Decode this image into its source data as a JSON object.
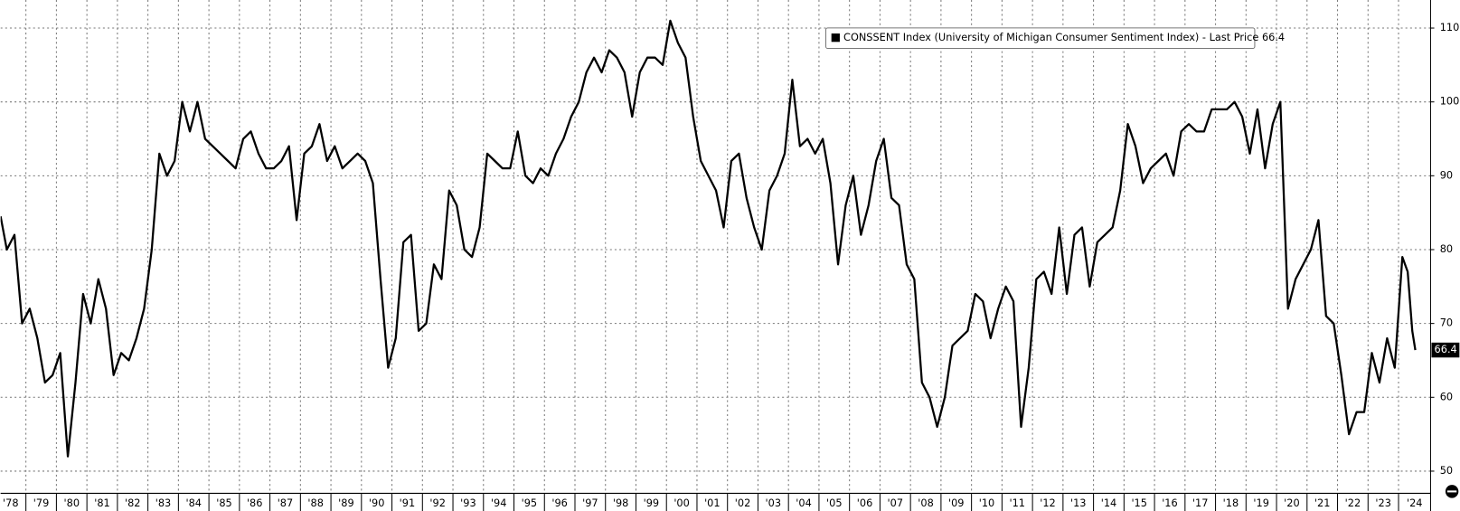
{
  "chart_data": {
    "type": "line",
    "series": [
      {
        "name": "CONSSENT Index (University of Michigan Consumer Sentiment Index) - Last Price 66.4",
        "color": "#000000",
        "x": [
          1978.17,
          1978.375,
          1978.625,
          1978.875,
          1979.125,
          1979.375,
          1979.625,
          1979.875,
          1980.125,
          1980.375,
          1980.625,
          1980.875,
          1981.125,
          1981.375,
          1981.625,
          1981.875,
          1982.125,
          1982.375,
          1982.625,
          1982.875,
          1983.125,
          1983.375,
          1983.625,
          1983.875,
          1984.125,
          1984.375,
          1984.625,
          1984.875,
          1985.125,
          1985.375,
          1985.625,
          1985.875,
          1986.125,
          1986.375,
          1986.625,
          1986.875,
          1987.125,
          1987.375,
          1987.625,
          1987.875,
          1988.125,
          1988.375,
          1988.625,
          1988.875,
          1989.125,
          1989.375,
          1989.625,
          1989.875,
          1990.125,
          1990.375,
          1990.625,
          1990.875,
          1991.125,
          1991.375,
          1991.625,
          1991.875,
          1992.125,
          1992.375,
          1992.625,
          1992.875,
          1993.125,
          1993.375,
          1993.625,
          1993.875,
          1994.125,
          1994.375,
          1994.625,
          1994.875,
          1995.125,
          1995.375,
          1995.625,
          1995.875,
          1996.125,
          1996.375,
          1996.625,
          1996.875,
          1997.125,
          1997.375,
          1997.625,
          1997.875,
          1998.125,
          1998.375,
          1998.625,
          1998.875,
          1999.125,
          1999.375,
          1999.625,
          1999.875,
          2000.125,
          2000.375,
          2000.625,
          2000.875,
          2001.125,
          2001.375,
          2001.625,
          2001.875,
          2002.125,
          2002.375,
          2002.625,
          2002.875,
          2003.125,
          2003.375,
          2003.625,
          2003.875,
          2004.125,
          2004.375,
          2004.625,
          2004.875,
          2005.125,
          2005.375,
          2005.625,
          2005.875,
          2006.125,
          2006.375,
          2006.625,
          2006.875,
          2007.125,
          2007.375,
          2007.625,
          2007.875,
          2008.125,
          2008.375,
          2008.625,
          2008.875,
          2009.125,
          2009.375,
          2009.625,
          2009.875,
          2010.125,
          2010.375,
          2010.625,
          2010.875,
          2011.125,
          2011.375,
          2011.625,
          2011.875,
          2012.125,
          2012.375,
          2012.625,
          2012.875,
          2013.125,
          2013.375,
          2013.625,
          2013.875,
          2014.125,
          2014.375,
          2014.625,
          2014.875,
          2015.125,
          2015.375,
          2015.625,
          2015.875,
          2016.125,
          2016.375,
          2016.625,
          2016.875,
          2017.125,
          2017.375,
          2017.625,
          2017.875,
          2018.125,
          2018.375,
          2018.625,
          2018.875,
          2019.125,
          2019.375,
          2019.625,
          2019.875,
          2020.125,
          2020.375,
          2020.625,
          2020.875,
          2021.125,
          2021.375,
          2021.625,
          2021.875,
          2022.125,
          2022.375,
          2022.625,
          2022.875,
          2023.125,
          2023.375,
          2023.625,
          2023.875,
          2024.125,
          2024.3,
          2024.45,
          2024.55
        ],
        "values": [
          84.5,
          80,
          82,
          70,
          72,
          68,
          62,
          63,
          66,
          52,
          62,
          74,
          70,
          76,
          72,
          63,
          66,
          65,
          68,
          72,
          80,
          93,
          90,
          92,
          100,
          96,
          100,
          95,
          94,
          93,
          92,
          91,
          95,
          96,
          93,
          91,
          91,
          92,
          94,
          84,
          93,
          94,
          97,
          92,
          94,
          91,
          92,
          93,
          92,
          89,
          76,
          64,
          68,
          81,
          82,
          69,
          70,
          78,
          76,
          88,
          86,
          80,
          79,
          83,
          93,
          92,
          91,
          91,
          96,
          90,
          89,
          91,
          90,
          93,
          95,
          98,
          100,
          104,
          106,
          104,
          107,
          106,
          104,
          98,
          104,
          106,
          106,
          105,
          111,
          108,
          106,
          98,
          92,
          90,
          88,
          83,
          92,
          93,
          87,
          83,
          80,
          88,
          90,
          93,
          103,
          94,
          95,
          93,
          95,
          89,
          78,
          86,
          90,
          82,
          86,
          92,
          95,
          87,
          86,
          78,
          76,
          62,
          60,
          56,
          60,
          67,
          68,
          69,
          74,
          73,
          68,
          72,
          75,
          73,
          56,
          64,
          76,
          77,
          74,
          83,
          74,
          82,
          83,
          75,
          81,
          82,
          83,
          88,
          97,
          94,
          89,
          91,
          92,
          93,
          90,
          96,
          97,
          96,
          96,
          99,
          99,
          99,
          100,
          98,
          93,
          99,
          91,
          97,
          100,
          72,
          76,
          78,
          80,
          84,
          71,
          70,
          63,
          55,
          58,
          58,
          66,
          62,
          68,
          64,
          79,
          77,
          69,
          66.4
        ]
      }
    ],
    "xlim": [
      1978.17,
      2025.05
    ],
    "xticks": [
      {
        "value": 1978,
        "label": "'78"
      },
      {
        "value": 1979,
        "label": "'79"
      },
      {
        "value": 1980,
        "label": "'80"
      },
      {
        "value": 1981,
        "label": "'81"
      },
      {
        "value": 1982,
        "label": "'82"
      },
      {
        "value": 1983,
        "label": "'83"
      },
      {
        "value": 1984,
        "label": "'84"
      },
      {
        "value": 1985,
        "label": "'85"
      },
      {
        "value": 1986,
        "label": "'86"
      },
      {
        "value": 1987,
        "label": "'87"
      },
      {
        "value": 1988,
        "label": "'88"
      },
      {
        "value": 1989,
        "label": "'89"
      },
      {
        "value": 1990,
        "label": "'90"
      },
      {
        "value": 1991,
        "label": "'91"
      },
      {
        "value": 1992,
        "label": "'92"
      },
      {
        "value": 1993,
        "label": "'93"
      },
      {
        "value": 1994,
        "label": "'94"
      },
      {
        "value": 1995,
        "label": "'95"
      },
      {
        "value": 1996,
        "label": "'96"
      },
      {
        "value": 1997,
        "label": "'97"
      },
      {
        "value": 1998,
        "label": "'98"
      },
      {
        "value": 1999,
        "label": "'99"
      },
      {
        "value": 2000,
        "label": "'00"
      },
      {
        "value": 2001,
        "label": "'01"
      },
      {
        "value": 2002,
        "label": "'02"
      },
      {
        "value": 2003,
        "label": "'03"
      },
      {
        "value": 2004,
        "label": "'04"
      },
      {
        "value": 2005,
        "label": "'05"
      },
      {
        "value": 2006,
        "label": "'06"
      },
      {
        "value": 2007,
        "label": "'07"
      },
      {
        "value": 2008,
        "label": "'08"
      },
      {
        "value": 2009,
        "label": "'09"
      },
      {
        "value": 2010,
        "label": "'10"
      },
      {
        "value": 2011,
        "label": "'11"
      },
      {
        "value": 2012,
        "label": "'12"
      },
      {
        "value": 2013,
        "label": "'13"
      },
      {
        "value": 2014,
        "label": "'14"
      },
      {
        "value": 2015,
        "label": "'15"
      },
      {
        "value": 2016,
        "label": "'16"
      },
      {
        "value": 2017,
        "label": "'17"
      },
      {
        "value": 2018,
        "label": "'18"
      },
      {
        "value": 2019,
        "label": "'19"
      },
      {
        "value": 2020,
        "label": "'20"
      },
      {
        "value": 2021,
        "label": "'21"
      },
      {
        "value": 2022,
        "label": "'22"
      },
      {
        "value": 2023,
        "label": "'23"
      },
      {
        "value": 2024,
        "label": "'24"
      }
    ],
    "ylim": [
      47,
      113.8
    ],
    "yticks": [
      50,
      60,
      70,
      80,
      90,
      100,
      110
    ],
    "grid": true
  }
}
